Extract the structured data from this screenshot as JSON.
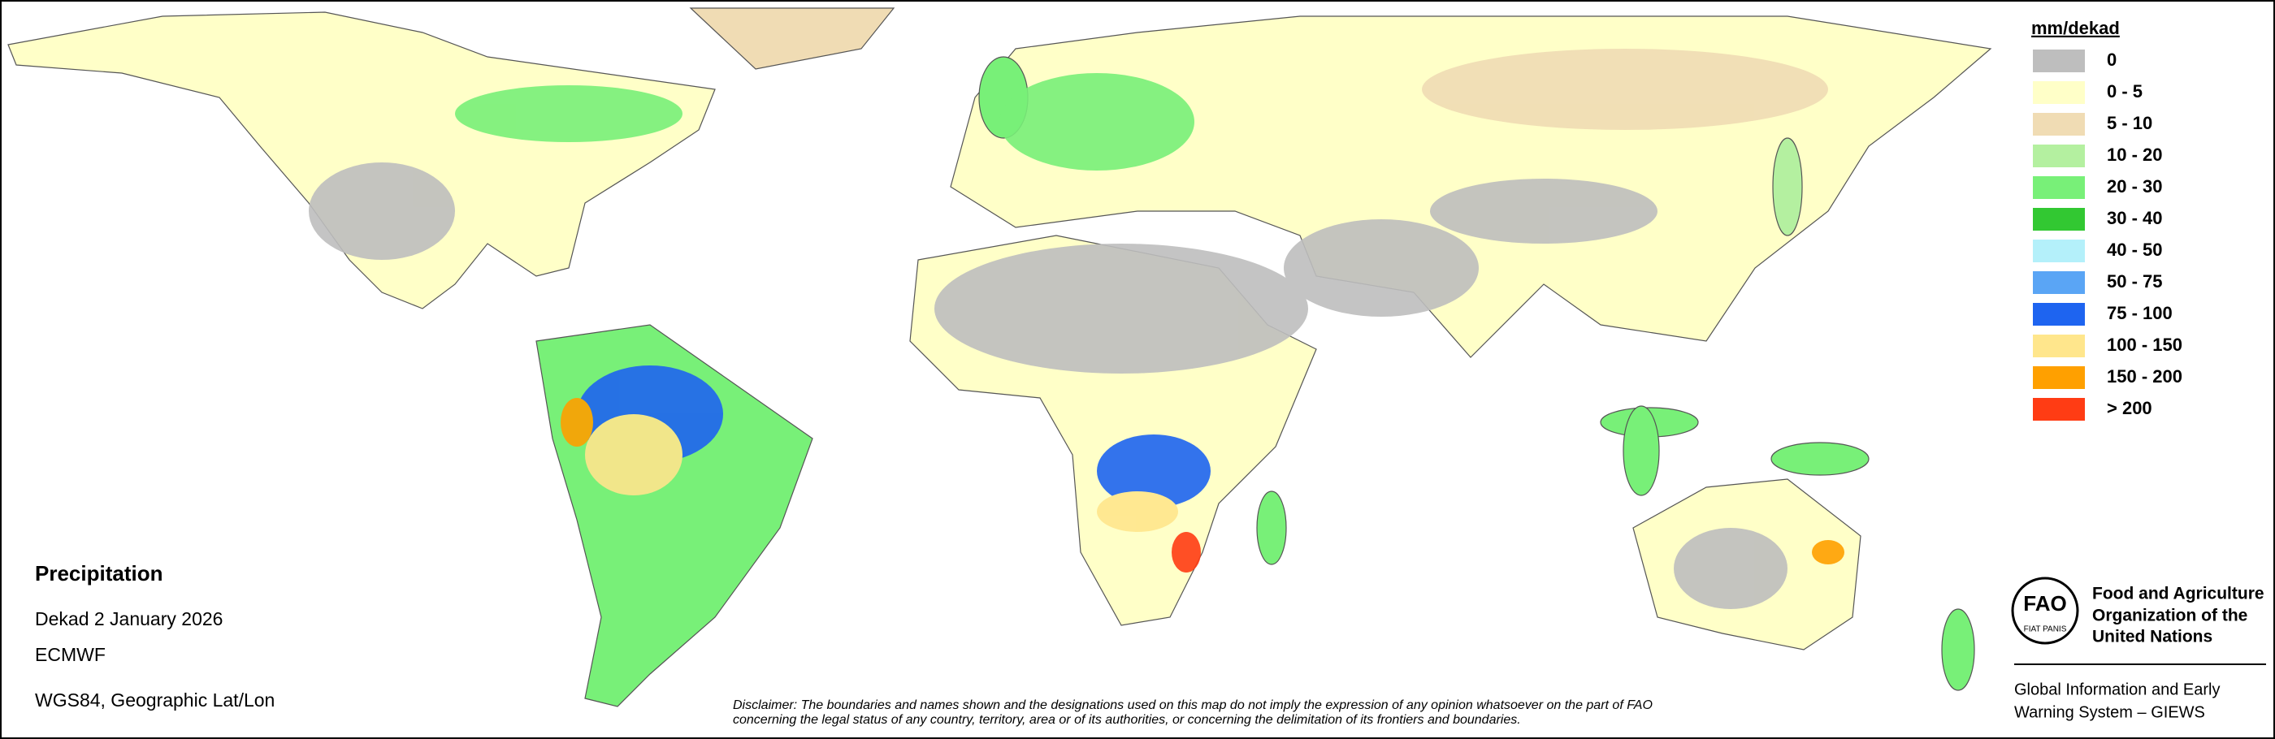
{
  "legend": {
    "title": "mm/dekad",
    "items": [
      {
        "label": "0",
        "color": "#bebebe"
      },
      {
        "label": "0 - 5",
        "color": "#ffffc8"
      },
      {
        "label": "5 - 10",
        "color": "#f0dcb4"
      },
      {
        "label": "10 - 20",
        "color": "#b4f0a0"
      },
      {
        "label": "20 - 30",
        "color": "#78f078"
      },
      {
        "label": "30 - 40",
        "color": "#32c832"
      },
      {
        "label": "40 - 50",
        "color": "#b4f0fa"
      },
      {
        "label": "50 - 75",
        "color": "#5aa5f5"
      },
      {
        "label": "75 - 100",
        "color": "#1e64f0"
      },
      {
        "label": "100 - 150",
        "color": "#ffe68c"
      },
      {
        "label": "150 - 200",
        "color": "#ffa000"
      },
      {
        "label": "> 200",
        "color": "#ff3c14"
      }
    ]
  },
  "info": {
    "title": "Precipitation",
    "lines": [
      "Dekad 2 January 2026",
      "ECMWF",
      "WGS84, Geographic Lat/Lon"
    ]
  },
  "disclaimer": [
    "Disclaimer: The boundaries and names shown and the designations used on this map do not imply the expression of any opinion whatsoever on the part of FAO",
    "concerning the legal status of any country, territory, area or of its authorities, or concerning the delimitation of its frontiers and boundaries."
  ],
  "organization": {
    "logo_text": "FAO",
    "logo_motto": "FIAT PANIS",
    "name": [
      "Food and Agriculture",
      "Organization of the",
      "United Nations"
    ],
    "system": [
      "Global Information and Early",
      "Warning System – GIEWS"
    ]
  }
}
